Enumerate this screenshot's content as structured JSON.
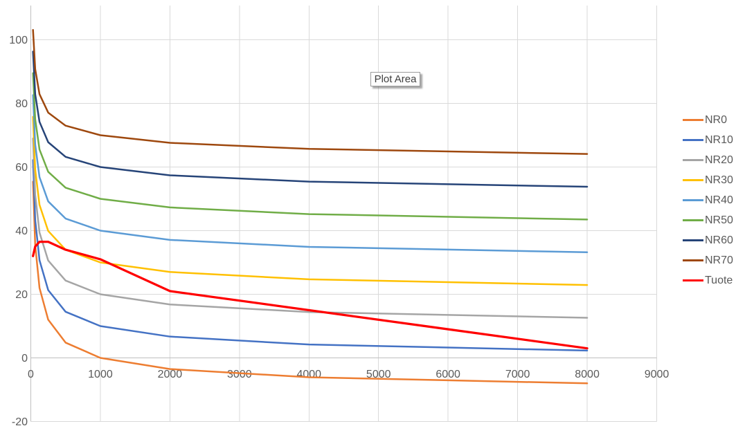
{
  "tooltip": {
    "text": "Plot Area"
  },
  "chart_data": {
    "type": "line",
    "title": "",
    "xlabel": "",
    "ylabel": "",
    "grid": true,
    "legend_position": "right",
    "xlim": [
      0,
      9000
    ],
    "ylim": [
      -20,
      110
    ],
    "x_ticks": [
      0,
      1000,
      2000,
      3000,
      4000,
      5000,
      6000,
      7000,
      8000,
      9000
    ],
    "y_ticks": [
      -20,
      0,
      20,
      40,
      60,
      80,
      100
    ],
    "x": [
      31.5,
      63,
      125,
      250,
      500,
      1000,
      2000,
      4000,
      8000
    ],
    "series": [
      {
        "name": "NR0",
        "color": "#ED7D31",
        "values": [
          55.4,
          35.5,
          22.0,
          12.0,
          4.8,
          0.0,
          -3.5,
          -6.1,
          -8.0
        ]
      },
      {
        "name": "NR10",
        "color": "#4472C4",
        "values": [
          62.2,
          43.4,
          30.7,
          21.3,
          14.5,
          10.0,
          6.7,
          4.2,
          2.3
        ]
      },
      {
        "name": "NR20",
        "color": "#A5A5A5",
        "values": [
          69.0,
          51.3,
          39.4,
          30.6,
          24.3,
          20.0,
          16.8,
          14.4,
          12.6
        ]
      },
      {
        "name": "NR30",
        "color": "#FFC000",
        "values": [
          75.8,
          59.2,
          48.1,
          39.9,
          34.0,
          30.0,
          27.0,
          24.7,
          22.9
        ]
      },
      {
        "name": "NR40",
        "color": "#5B9BD5",
        "values": [
          82.6,
          67.1,
          56.8,
          49.2,
          43.8,
          40.0,
          37.1,
          34.9,
          33.2
        ]
      },
      {
        "name": "NR50",
        "color": "#70AD47",
        "values": [
          89.5,
          75.0,
          65.5,
          58.5,
          53.5,
          50.0,
          47.3,
          45.2,
          43.5
        ]
      },
      {
        "name": "NR60",
        "color": "#264478",
        "values": [
          96.3,
          82.9,
          74.2,
          67.8,
          63.2,
          60.0,
          57.4,
          55.4,
          53.8
        ]
      },
      {
        "name": "NR70",
        "color": "#9E480E",
        "values": [
          103.1,
          90.8,
          82.9,
          77.1,
          73.0,
          70.0,
          67.6,
          65.7,
          64.1
        ]
      },
      {
        "name": "Tuote",
        "color": "#FF0000",
        "values": [
          32.0,
          35.0,
          36.5,
          36.5,
          34.0,
          31.0,
          21.0,
          15.0,
          3.0
        ]
      }
    ],
    "emphasized_series": "Tuote",
    "colors": {
      "gridline": "#D9D9D9",
      "axis_line": "#BFBFBF",
      "tick_label": "#595959"
    }
  }
}
